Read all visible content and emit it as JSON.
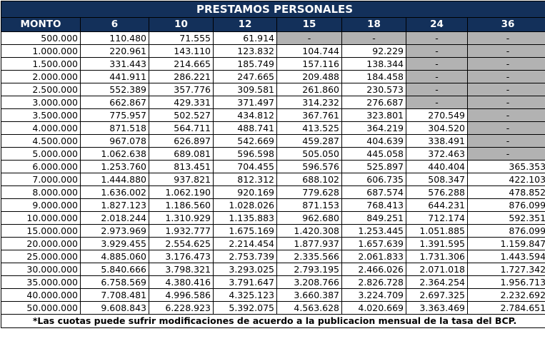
{
  "title": "PRESTAMOS PERSONALES",
  "headers": [
    "MONTO",
    "6",
    "10",
    "12",
    "15",
    "18",
    "24",
    "36"
  ],
  "rows": [
    [
      "500.000",
      "110.480",
      "71.555",
      "61.914",
      "-",
      "-",
      "-",
      "-"
    ],
    [
      "1.000.000",
      "220.961",
      "143.110",
      "123.832",
      "104.744",
      "92.229",
      "-",
      "-"
    ],
    [
      "1.500.000",
      "331.443",
      "214.665",
      "185.749",
      "157.116",
      "138.344",
      "-",
      "-"
    ],
    [
      "2.000.000",
      "441.911",
      "286.221",
      "247.665",
      "209.488",
      "184.458",
      "-",
      "-"
    ],
    [
      "2.500.000",
      "552.389",
      "357.776",
      "309.581",
      "261.860",
      "230.573",
      "-",
      "-"
    ],
    [
      "3.000.000",
      "662.867",
      "429.331",
      "371.497",
      "314.232",
      "276.687",
      "-",
      "-"
    ],
    [
      "3.500.000",
      "775.957",
      "502.527",
      "434.812",
      "367.761",
      "323.801",
      "270.549",
      "-"
    ],
    [
      "4.000.000",
      "871.518",
      "564.711",
      "488.741",
      "413.525",
      "364.219",
      "304.520",
      "-"
    ],
    [
      "4.500.000",
      "967.078",
      "626.897",
      "542.669",
      "459.287",
      "404.639",
      "338.491",
      "-"
    ],
    [
      "5.000.000",
      "1.062.638",
      "689.081",
      "596.598",
      "505.050",
      "445.058",
      "372.463",
      "-"
    ],
    [
      "6.000.000",
      "1.253.760",
      "813.451",
      "704.455",
      "596.576",
      "525.897",
      "440.404",
      "365.353"
    ],
    [
      "7.000.000",
      "1.444.880",
      "937.821",
      "812.312",
      "688.102",
      "606.735",
      "508.347",
      "422.103"
    ],
    [
      "8.000.000",
      "1.636.002",
      "1.062.190",
      "920.169",
      "779.628",
      "687.574",
      "576.288",
      "478.852"
    ],
    [
      "9.000.000",
      "1.827.123",
      "1.186.560",
      "1.028.026",
      "871.153",
      "768.413",
      "644.231",
      "876.099"
    ],
    [
      "10.000.000",
      "2.018.244",
      "1.310.929",
      "1.135.883",
      "962.680",
      "849.251",
      "712.174",
      "592.351"
    ],
    [
      "15.000.000",
      "2.973.969",
      "1.932.777",
      "1.675.169",
      "1.420.308",
      "1.253.445",
      "1.051.885",
      "876.099"
    ],
    [
      "20.000.000",
      "3.929.455",
      "2.554.625",
      "2.214.454",
      "1.877.937",
      "1.657.639",
      "1.391.595",
      "1.159.847"
    ],
    [
      "25.000.000",
      "4.885.060",
      "3.176.473",
      "2.753.739",
      "2.335.566",
      "2.061.833",
      "1.731.306",
      "1.443.594"
    ],
    [
      "30.000.000",
      "5.840.666",
      "3.798.321",
      "3.293.025",
      "2.793.195",
      "2.466.026",
      "2.071.018",
      "1.727.342"
    ],
    [
      "35.000.000",
      "6.758.569",
      "4.380.416",
      "3.791.647",
      "3.208.766",
      "2.826.728",
      "2.364.254",
      "1.956.713"
    ],
    [
      "40.000.000",
      "7.708.481",
      "4.996.586",
      "4.325.123",
      "3.660.387",
      "3.224.709",
      "2.697.325",
      "2.232.692"
    ],
    [
      "50.000.000",
      "9.608.843",
      "6.228.923",
      "5.392.075",
      "4.563.628",
      "4.020.669",
      "3.363.469",
      "2.784.651"
    ]
  ],
  "footnote": "*Las cuotas puede sufrir modificaciones de acuerdo a la publicacion mensual de la tasa del BCP.",
  "colors": {
    "header_bg": "#13305a",
    "header_text": "#ffffff",
    "unavailable_bg": "#b2b2b2"
  }
}
